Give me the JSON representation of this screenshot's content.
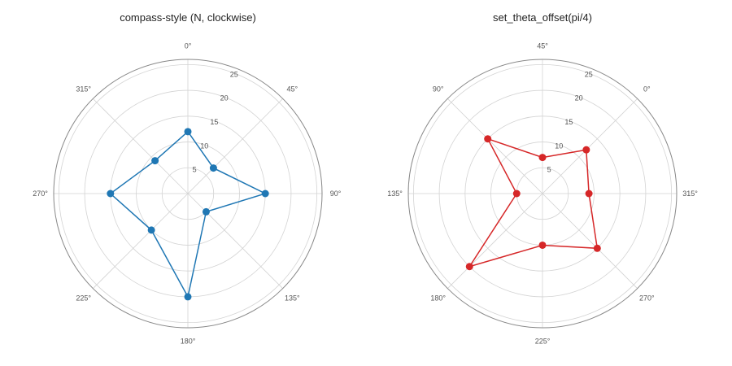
{
  "chart_data": [
    {
      "type": "radar",
      "title": "compass-style (N, clockwise)",
      "theta_direction": "clockwise",
      "zero_location": "N",
      "theta_offset_deg": 0,
      "theta_tick_labels": [
        "0°",
        "45°",
        "90°",
        "135°",
        "180°",
        "225°",
        "270°",
        "315°"
      ],
      "r_ticks": [
        5,
        10,
        15,
        20,
        25
      ],
      "rlim": [
        0,
        26
      ],
      "grid": true,
      "series": [
        {
          "color": "#1f77b4",
          "theta_deg": [
            0,
            45,
            90,
            135,
            180,
            225,
            270,
            315
          ],
          "values": [
            12,
            7,
            15,
            5,
            20,
            10,
            15,
            9
          ]
        }
      ]
    },
    {
      "type": "radar",
      "title": "set_theta_offset(pi/4)",
      "theta_direction": "counterclockwise",
      "zero_location": "E",
      "theta_offset_deg": 45,
      "theta_tick_labels": [
        "0°",
        "45°",
        "90°",
        "135°",
        "180°",
        "225°",
        "270°",
        "315°"
      ],
      "r_ticks": [
        5,
        10,
        15,
        20,
        25
      ],
      "rlim": [
        0,
        26
      ],
      "grid": true,
      "series": [
        {
          "color": "#d62728",
          "theta_deg": [
            0,
            45,
            90,
            135,
            180,
            225,
            270,
            315
          ],
          "values": [
            12,
            7,
            15,
            5,
            20,
            10,
            15,
            9
          ]
        }
      ]
    }
  ]
}
